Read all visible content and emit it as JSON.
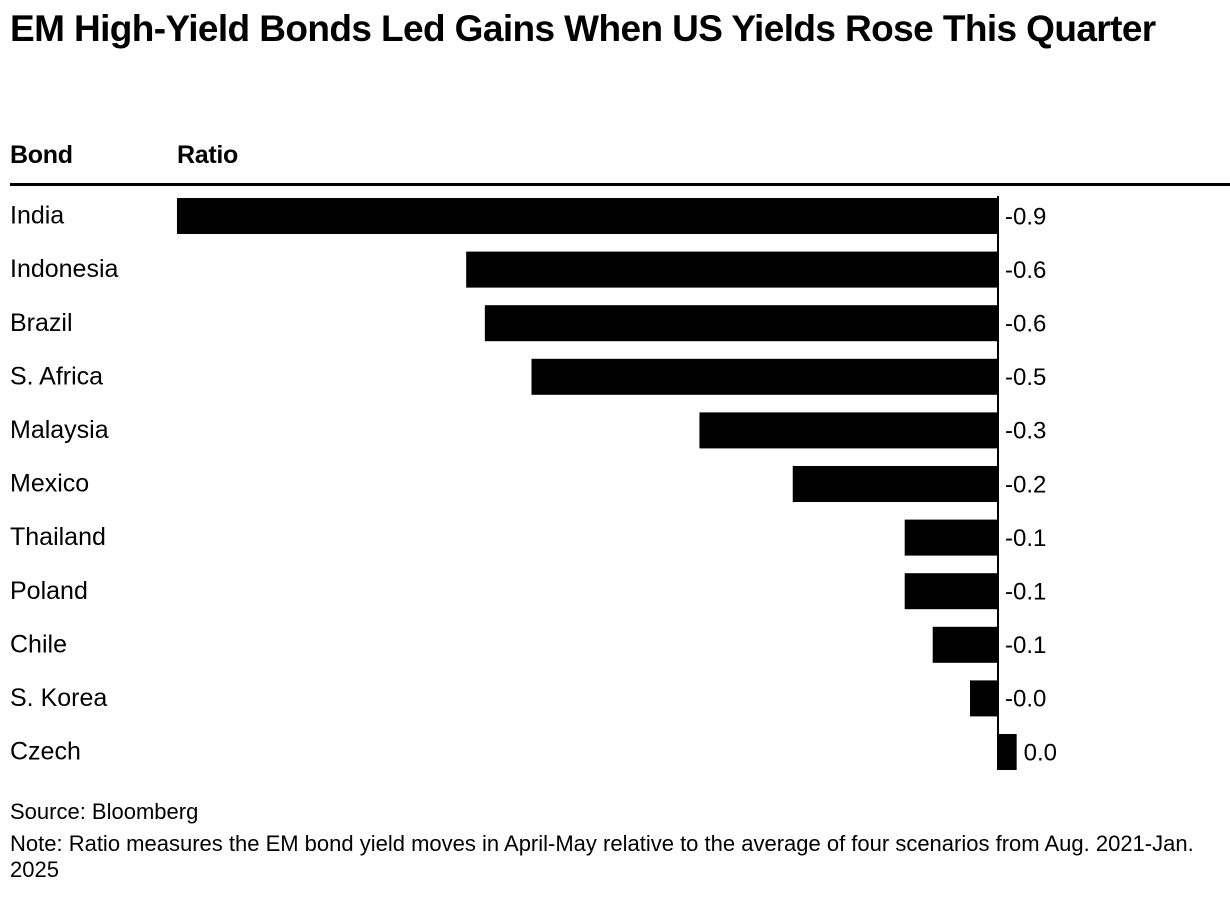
{
  "chart_data": {
    "type": "bar",
    "orientation": "horizontal",
    "title": "EM High-Yield Bonds Led Gains When US Yields Rose This Quarter",
    "category_header": "Bond",
    "value_header": "Ratio",
    "categories": [
      "India",
      "Indonesia",
      "Brazil",
      "S. Africa",
      "Malaysia",
      "Mexico",
      "Thailand",
      "Poland",
      "Chile",
      "S. Korea",
      "Czech"
    ],
    "values": [
      -0.88,
      -0.57,
      -0.55,
      -0.5,
      -0.32,
      -0.22,
      -0.1,
      -0.1,
      -0.07,
      -0.03,
      0.02
    ],
    "value_labels": [
      "-0.9",
      "-0.6",
      "-0.6",
      "-0.5",
      "-0.3",
      "-0.2",
      "-0.1",
      "-0.1",
      "-0.1",
      "-0.0",
      "0.0"
    ],
    "bar_color": "#000000",
    "grid": false,
    "legend": "none",
    "source": "Source: Bloomberg",
    "note": "Note: Ratio measures the EM bond yield moves in April-May relative to the average of four scenarios from Aug. 2021-Jan. 2025"
  }
}
